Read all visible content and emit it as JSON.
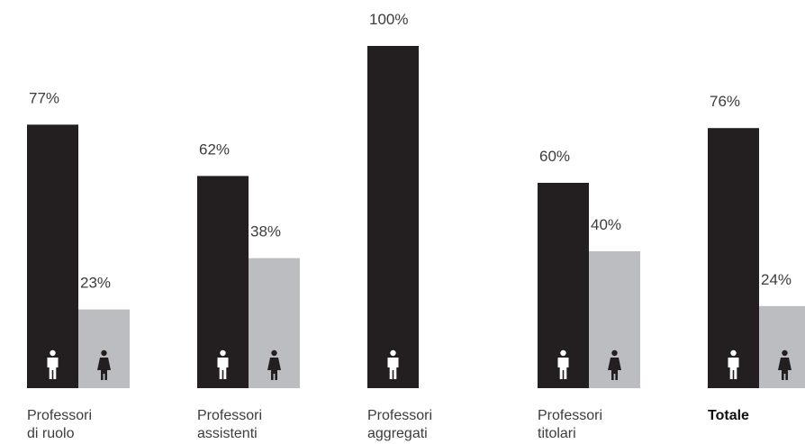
{
  "chart_data": {
    "type": "bar",
    "categories": [
      {
        "line1": "Professori",
        "line2": "di ruolo",
        "bold": false
      },
      {
        "line1": "Professori",
        "line2": "assistenti",
        "bold": false
      },
      {
        "line1": "Professori",
        "line2": "aggregati",
        "bold": false
      },
      {
        "line1": "Professori",
        "line2": "titolari",
        "bold": false
      },
      {
        "line1": "Totale",
        "line2": "",
        "bold": true
      }
    ],
    "series": [
      {
        "icon": "male-icon",
        "color": "#231f20",
        "values": [
          77,
          62,
          100,
          60,
          76
        ],
        "labels": [
          "77%",
          "62%",
          "100%",
          "60%",
          "76%"
        ]
      },
      {
        "icon": "female-icon",
        "color": "#bcbdc0",
        "values": [
          23,
          38,
          0,
          40,
          24
        ],
        "labels": [
          "23%",
          "38%",
          "",
          "40%",
          "24%"
        ]
      }
    ],
    "ylim": [
      0,
      100
    ],
    "grid": false,
    "legend": "none"
  }
}
